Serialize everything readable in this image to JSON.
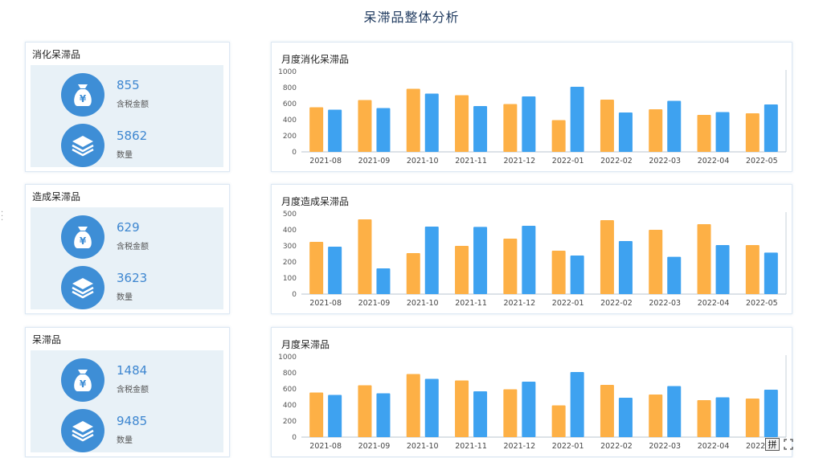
{
  "page": {
    "title": "呆滞品整体分析"
  },
  "colors": {
    "orange": "#fdb046",
    "blue": "#3ea2f0",
    "icon_bg": "#3e8ed6",
    "value": "#3d86d0"
  },
  "kpi_panels": [
    {
      "title": "消化呆滞品",
      "amount": "855",
      "amount_label": "含税金额",
      "quantity": "5862",
      "quantity_label": "数量"
    },
    {
      "title": "造成呆滞品",
      "amount": "629",
      "amount_label": "含税金额",
      "quantity": "3623",
      "quantity_label": "数量"
    },
    {
      "title": "呆滞品",
      "amount": "1484",
      "amount_label": "含税金额",
      "quantity": "9485",
      "quantity_label": "数量"
    }
  ],
  "ime_indicator": "拼",
  "chart_data": [
    {
      "type": "bar",
      "title": "月度消化呆滞品",
      "categories": [
        "2021-08",
        "2021-09",
        "2021-10",
        "2021-11",
        "2021-12",
        "2022-01",
        "2022-02",
        "2022-03",
        "2022-04",
        "2022-05"
      ],
      "series": [
        {
          "values": [
            555,
            645,
            785,
            705,
            595,
            395,
            650,
            530,
            460,
            480
          ]
        },
        {
          "values": [
            525,
            545,
            725,
            570,
            690,
            810,
            490,
            635,
            495,
            590
          ]
        }
      ],
      "ylim": [
        0,
        1000
      ],
      "yticks": [
        0,
        200,
        400,
        600,
        800,
        1000
      ],
      "grid": false
    },
    {
      "type": "bar",
      "title": "月度造成呆滞品",
      "categories": [
        "2021-08",
        "2021-09",
        "2021-10",
        "2021-11",
        "2021-12",
        "2022-01",
        "2022-02",
        "2022-03",
        "2022-04",
        "2022-05"
      ],
      "series": [
        {
          "values": [
            325,
            465,
            255,
            300,
            345,
            270,
            460,
            400,
            435,
            305
          ]
        },
        {
          "values": [
            295,
            160,
            420,
            418,
            425,
            240,
            330,
            232,
            305,
            258
          ]
        }
      ],
      "ylim": [
        0,
        500
      ],
      "yticks": [
        0,
        100,
        200,
        300,
        400,
        500
      ],
      "grid": false
    },
    {
      "type": "bar",
      "title": "月度呆滞品",
      "categories": [
        "2021-08",
        "2021-09",
        "2021-10",
        "2021-11",
        "2021-12",
        "2022-01",
        "2022-02",
        "2022-03",
        "2022-04",
        "2022-05"
      ],
      "series": [
        {
          "values": [
            555,
            645,
            785,
            705,
            595,
            395,
            650,
            530,
            460,
            480
          ]
        },
        {
          "values": [
            525,
            545,
            725,
            570,
            690,
            810,
            490,
            635,
            495,
            590
          ]
        }
      ],
      "ylim": [
        0,
        1000
      ],
      "yticks": [
        0,
        200,
        400,
        600,
        800,
        1000
      ],
      "grid": false
    }
  ]
}
